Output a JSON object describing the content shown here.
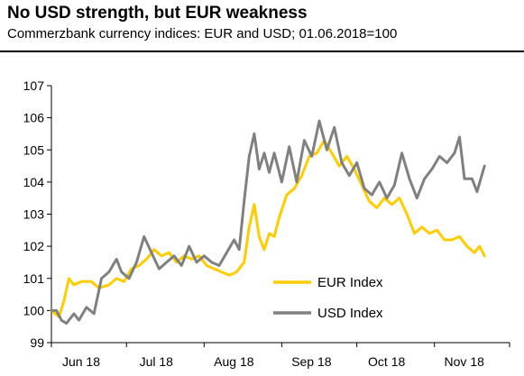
{
  "chart_data": {
    "type": "line",
    "title": "No USD strength, but EUR weakness",
    "subtitle": "Commerzbank currency indices: EUR and USD; 01.06.2018=100",
    "xlabel": "",
    "ylabel": "",
    "xlim": [
      "2018-06-01",
      "2018-12-01"
    ],
    "ylim": [
      99,
      107
    ],
    "y_ticks": [
      99,
      100,
      101,
      102,
      103,
      104,
      105,
      106,
      107
    ],
    "x_ticks": [
      {
        "date": "2018-06-01",
        "label": "Jun 18"
      },
      {
        "date": "2018-07-01",
        "label": "Jul 18"
      },
      {
        "date": "2018-08-01",
        "label": "Aug 18"
      },
      {
        "date": "2018-09-01",
        "label": "Sep 18"
      },
      {
        "date": "2018-10-01",
        "label": "Oct 18"
      },
      {
        "date": "2018-11-01",
        "label": "Nov 18"
      }
    ],
    "grid": false,
    "legend": "bottom-right",
    "series": [
      {
        "name": "EUR Index",
        "color": "#ffcc00",
        "points": [
          [
            "2018-06-01",
            100.0
          ],
          [
            "2018-06-04",
            99.8
          ],
          [
            "2018-06-06",
            100.3
          ],
          [
            "2018-06-08",
            101.0
          ],
          [
            "2018-06-10",
            100.8
          ],
          [
            "2018-06-13",
            100.9
          ],
          [
            "2018-06-17",
            100.9
          ],
          [
            "2018-06-20",
            100.7
          ],
          [
            "2018-06-24",
            100.8
          ],
          [
            "2018-06-27",
            101.0
          ],
          [
            "2018-06-30",
            100.9
          ],
          [
            "2018-07-03",
            101.3
          ],
          [
            "2018-07-06",
            101.4
          ],
          [
            "2018-07-09",
            101.6
          ],
          [
            "2018-07-12",
            101.9
          ],
          [
            "2018-07-15",
            101.7
          ],
          [
            "2018-07-18",
            101.8
          ],
          [
            "2018-07-21",
            101.5
          ],
          [
            "2018-07-24",
            101.7
          ],
          [
            "2018-07-27",
            101.6
          ],
          [
            "2018-07-30",
            101.7
          ],
          [
            "2018-08-02",
            101.4
          ],
          [
            "2018-08-05",
            101.3
          ],
          [
            "2018-08-08",
            101.2
          ],
          [
            "2018-08-11",
            101.1
          ],
          [
            "2018-08-14",
            101.2
          ],
          [
            "2018-08-17",
            101.5
          ],
          [
            "2018-08-19",
            102.6
          ],
          [
            "2018-08-21",
            103.3
          ],
          [
            "2018-08-23",
            102.3
          ],
          [
            "2018-08-25",
            101.9
          ],
          [
            "2018-08-27",
            102.4
          ],
          [
            "2018-08-29",
            102.3
          ],
          [
            "2018-08-31",
            102.9
          ],
          [
            "2018-09-03",
            103.6
          ],
          [
            "2018-09-06",
            103.8
          ],
          [
            "2018-09-09",
            104.2
          ],
          [
            "2018-09-12",
            104.8
          ],
          [
            "2018-09-15",
            104.9
          ],
          [
            "2018-09-18",
            105.3
          ],
          [
            "2018-09-21",
            104.9
          ],
          [
            "2018-09-24",
            104.5
          ],
          [
            "2018-09-27",
            104.8
          ],
          [
            "2018-09-30",
            104.4
          ],
          [
            "2018-10-03",
            103.9
          ],
          [
            "2018-10-06",
            103.4
          ],
          [
            "2018-10-09",
            103.2
          ],
          [
            "2018-10-12",
            103.5
          ],
          [
            "2018-10-15",
            103.3
          ],
          [
            "2018-10-18",
            103.5
          ],
          [
            "2018-10-21",
            103.0
          ],
          [
            "2018-10-24",
            102.4
          ],
          [
            "2018-10-27",
            102.6
          ],
          [
            "2018-10-30",
            102.4
          ],
          [
            "2018-11-02",
            102.5
          ],
          [
            "2018-11-05",
            102.2
          ],
          [
            "2018-11-08",
            102.2
          ],
          [
            "2018-11-11",
            102.3
          ],
          [
            "2018-11-14",
            102.0
          ],
          [
            "2018-11-17",
            101.8
          ],
          [
            "2018-11-19",
            102.0
          ],
          [
            "2018-11-21",
            101.7
          ]
        ]
      },
      {
        "name": "USD Index",
        "color": "#808080",
        "points": [
          [
            "2018-06-01",
            100.0
          ],
          [
            "2018-06-03",
            100.0
          ],
          [
            "2018-06-05",
            99.7
          ],
          [
            "2018-06-07",
            99.6
          ],
          [
            "2018-06-10",
            99.9
          ],
          [
            "2018-06-12",
            99.7
          ],
          [
            "2018-06-15",
            100.1
          ],
          [
            "2018-06-18",
            99.9
          ],
          [
            "2018-06-21",
            101.0
          ],
          [
            "2018-06-24",
            101.2
          ],
          [
            "2018-06-27",
            101.6
          ],
          [
            "2018-06-29",
            101.2
          ],
          [
            "2018-07-02",
            101.0
          ],
          [
            "2018-07-05",
            101.5
          ],
          [
            "2018-07-08",
            102.3
          ],
          [
            "2018-07-11",
            101.8
          ],
          [
            "2018-07-14",
            101.3
          ],
          [
            "2018-07-17",
            101.5
          ],
          [
            "2018-07-20",
            101.7
          ],
          [
            "2018-07-23",
            101.4
          ],
          [
            "2018-07-26",
            102.0
          ],
          [
            "2018-07-29",
            101.5
          ],
          [
            "2018-08-01",
            101.7
          ],
          [
            "2018-08-04",
            101.5
          ],
          [
            "2018-08-07",
            101.4
          ],
          [
            "2018-08-10",
            101.8
          ],
          [
            "2018-08-13",
            102.2
          ],
          [
            "2018-08-15",
            101.9
          ],
          [
            "2018-08-17",
            103.4
          ],
          [
            "2018-08-19",
            104.8
          ],
          [
            "2018-08-21",
            105.5
          ],
          [
            "2018-08-23",
            104.4
          ],
          [
            "2018-08-25",
            104.9
          ],
          [
            "2018-08-27",
            104.3
          ],
          [
            "2018-08-29",
            104.9
          ],
          [
            "2018-09-01",
            104.0
          ],
          [
            "2018-09-04",
            105.1
          ],
          [
            "2018-09-07",
            104.0
          ],
          [
            "2018-09-10",
            105.3
          ],
          [
            "2018-09-13",
            104.8
          ],
          [
            "2018-09-16",
            105.9
          ],
          [
            "2018-09-19",
            105.0
          ],
          [
            "2018-09-22",
            105.7
          ],
          [
            "2018-09-25",
            104.6
          ],
          [
            "2018-09-28",
            104.2
          ],
          [
            "2018-10-01",
            104.6
          ],
          [
            "2018-10-04",
            103.8
          ],
          [
            "2018-10-07",
            103.6
          ],
          [
            "2018-10-10",
            104.0
          ],
          [
            "2018-10-13",
            103.5
          ],
          [
            "2018-10-16",
            103.9
          ],
          [
            "2018-10-19",
            104.9
          ],
          [
            "2018-10-22",
            104.1
          ],
          [
            "2018-10-25",
            103.5
          ],
          [
            "2018-10-28",
            104.1
          ],
          [
            "2018-10-31",
            104.4
          ],
          [
            "2018-11-03",
            104.8
          ],
          [
            "2018-11-06",
            104.6
          ],
          [
            "2018-11-09",
            104.9
          ],
          [
            "2018-11-11",
            105.4
          ],
          [
            "2018-11-13",
            104.1
          ],
          [
            "2018-11-16",
            104.1
          ],
          [
            "2018-11-18",
            103.7
          ],
          [
            "2018-11-21",
            104.5
          ]
        ]
      }
    ]
  }
}
